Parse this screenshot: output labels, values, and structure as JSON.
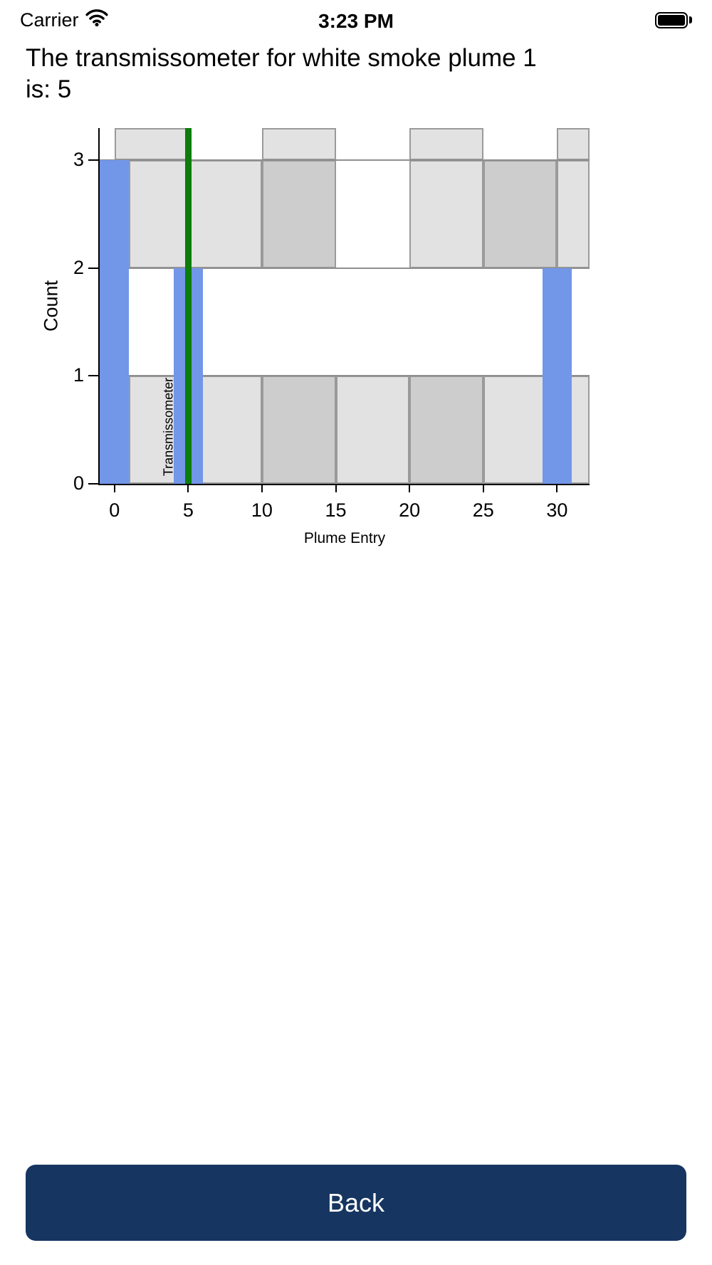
{
  "status_bar": {
    "carrier": "Carrier",
    "time": "3:23 PM"
  },
  "title": "The transmissometer for white smoke plume 1 is: 5",
  "chart_data": {
    "type": "bar",
    "title": "",
    "xlabel": "Plume Entry",
    "ylabel": "Count",
    "xlim": [
      -1,
      32.2
    ],
    "ylim": [
      0,
      3.3
    ],
    "x_ticks": [
      0,
      5,
      10,
      15,
      20,
      25,
      30
    ],
    "y_ticks": [
      0,
      1,
      2,
      3
    ],
    "grid": true,
    "gridlines_y": [
      1,
      2,
      3
    ],
    "legend_position": "none",
    "bar_color": "#7296e8",
    "bars": [
      {
        "x0": -1,
        "x1": 1,
        "count": 3
      },
      {
        "x0": 4,
        "x1": 6,
        "count": 2
      },
      {
        "x0": 29,
        "x1": 31,
        "count": 2
      }
    ],
    "vline": {
      "x": 5,
      "label": "Transmissometer",
      "color": "#0a7d0a"
    },
    "block_colors": {
      "light": "#e2e2e2",
      "dark": "#cdcdcd",
      "border": "#9a9a9a"
    },
    "background_blocks": [
      {
        "x0": 0,
        "x1": 5,
        "y0": 3,
        "y1": 3.3,
        "shade": "light"
      },
      {
        "x0": 10,
        "x1": 15,
        "y0": 3,
        "y1": 3.3,
        "shade": "light"
      },
      {
        "x0": 20,
        "x1": 25,
        "y0": 3,
        "y1": 3.3,
        "shade": "light"
      },
      {
        "x0": 30,
        "x1": 32.2,
        "y0": 3,
        "y1": 3.3,
        "shade": "light"
      },
      {
        "x0": 1,
        "x1": 10,
        "y0": 2,
        "y1": 3,
        "shade": "light"
      },
      {
        "x0": 10,
        "x1": 15,
        "y0": 2,
        "y1": 3,
        "shade": "dark"
      },
      {
        "x0": 20,
        "x1": 25,
        "y0": 2,
        "y1": 3,
        "shade": "light"
      },
      {
        "x0": 25,
        "x1": 30,
        "y0": 2,
        "y1": 3,
        "shade": "dark"
      },
      {
        "x0": 30,
        "x1": 32.2,
        "y0": 2,
        "y1": 3,
        "shade": "light"
      },
      {
        "x0": 1,
        "x1": 10,
        "y0": 0,
        "y1": 1,
        "shade": "light"
      },
      {
        "x0": 10,
        "x1": 15,
        "y0": 0,
        "y1": 1,
        "shade": "dark"
      },
      {
        "x0": 15,
        "x1": 20,
        "y0": 0,
        "y1": 1,
        "shade": "light"
      },
      {
        "x0": 20,
        "x1": 25,
        "y0": 0,
        "y1": 1,
        "shade": "dark"
      },
      {
        "x0": 25,
        "x1": 32.2,
        "y0": 0,
        "y1": 1,
        "shade": "light"
      }
    ]
  },
  "back_button": {
    "label": "Back",
    "color": "#163560"
  }
}
